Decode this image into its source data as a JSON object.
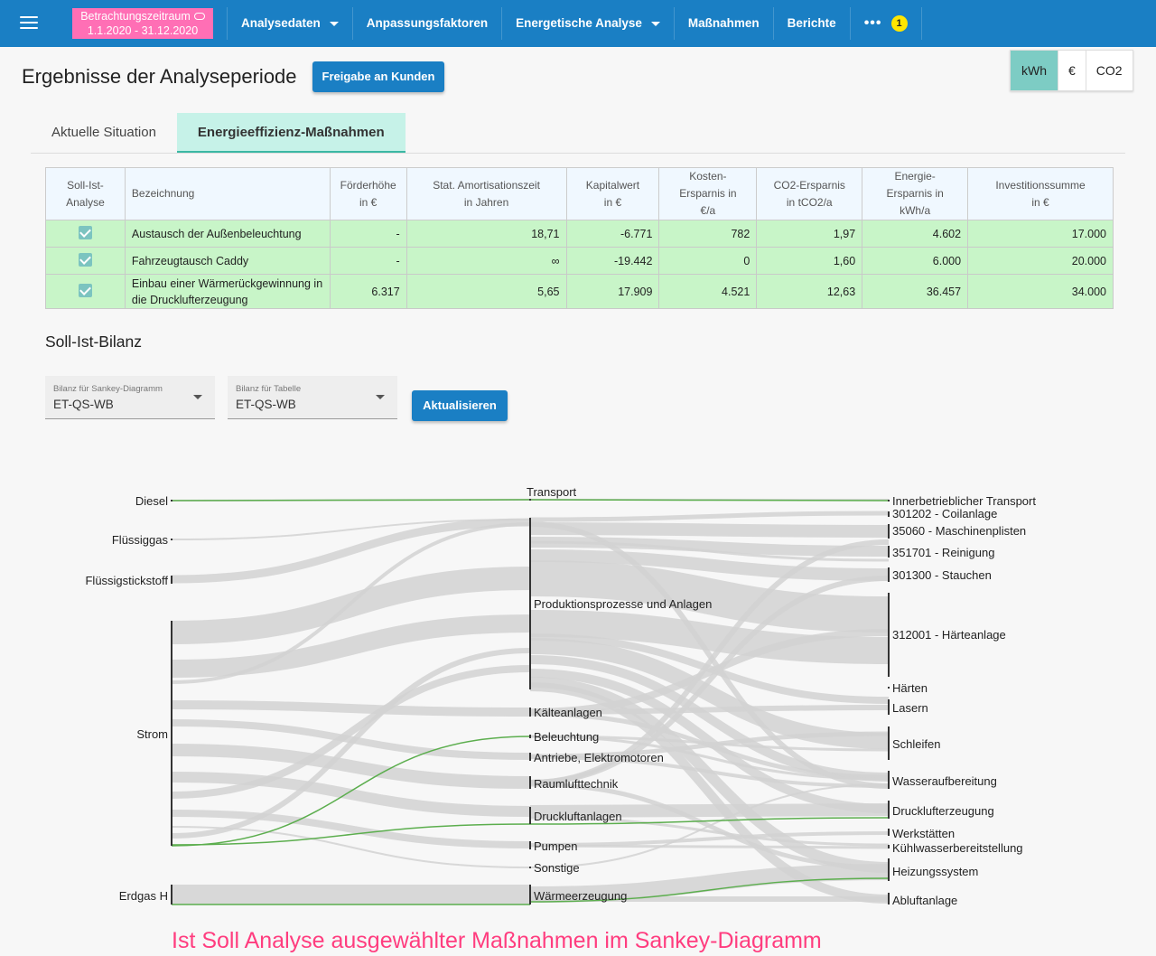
{
  "period": {
    "label": "Betrachtungszeitraum",
    "range": "1.1.2020 - 31.12.2020"
  },
  "nav": {
    "items": [
      {
        "label": "Analysedaten",
        "dropdown": true
      },
      {
        "label": "Anpassungsfaktoren",
        "dropdown": false
      },
      {
        "label": "Energetische Analyse",
        "dropdown": true
      },
      {
        "label": "Maßnahmen",
        "dropdown": false
      },
      {
        "label": "Berichte",
        "dropdown": false
      }
    ],
    "more_icon": "more-dots-icon",
    "badge": "1"
  },
  "page": {
    "title": "Ergebnisse der Analyseperiode",
    "share_button": "Freigabe an Kunden"
  },
  "units": {
    "options": [
      "kWh",
      "€",
      "CO2"
    ],
    "selected": "kWh"
  },
  "tabs": [
    {
      "label": "Aktuelle Situation",
      "active": false
    },
    {
      "label": "Energieeffizienz-Maßnahmen",
      "active": true
    }
  ],
  "table": {
    "headers": [
      [
        "Soll-Ist-",
        "Analyse"
      ],
      [
        "Bezeichnung"
      ],
      [
        "Förderhöhe",
        "in €"
      ],
      [
        "Stat. Amortisationszeit",
        "in Jahren"
      ],
      [
        "Kapitalwert",
        "in €"
      ],
      [
        "Kosten-",
        "Ersparnis in",
        "€/a"
      ],
      [
        "CO2-Ersparnis",
        "in tCO2/a"
      ],
      [
        "Energie-",
        "Ersparnis in",
        "kWh/a"
      ],
      [
        "Investitionssumme",
        "in €"
      ]
    ],
    "rows": [
      {
        "checked": true,
        "name": "Austausch der Außenbeleuchtung",
        "foerder": "-",
        "amort": "18,71",
        "kapital": "-6.771",
        "kosten": "782",
        "co2": "1,97",
        "energie": "4.602",
        "invest": "17.000"
      },
      {
        "checked": true,
        "name": "Fahrzeugtausch Caddy",
        "foerder": "-",
        "amort": "∞",
        "kapital": "-19.442",
        "kosten": "0",
        "co2": "1,60",
        "energie": "6.000",
        "invest": "20.000"
      },
      {
        "checked": true,
        "name": "Einbau einer Wärmerückgewinnung in die Drucklufterzeugung",
        "foerder": "6.317",
        "amort": "5,65",
        "kapital": "17.909",
        "kosten": "4.521",
        "co2": "12,63",
        "energie": "36.457",
        "invest": "34.000"
      }
    ]
  },
  "balance": {
    "title": "Soll-Ist-Bilanz",
    "sankey_select": {
      "label": "Bilanz für Sankey-Diagramm",
      "value": "ET-QS-WB"
    },
    "table_select": {
      "label": "Bilanz für Tabelle",
      "value": "ET-QS-WB"
    },
    "update_button": "Aktualisieren"
  },
  "sankey": {
    "sources": [
      "Diesel",
      "Flüssiggas",
      "Flüssigstickstoff",
      "Strom",
      "Erdgas H"
    ],
    "uses": [
      "Transport",
      "Produktionsprozesse und Anlagen",
      "Kälteanlagen",
      "Beleuchtung",
      "Antriebe, Elektromotoren",
      "Raumlufttechnik",
      "Druckluftanlagen",
      "Pumpen",
      "Sonstige",
      "Wärmeerzeugung"
    ],
    "consumers": [
      "Innerbetrieblicher Transport",
      "301202 - Coilanlage",
      "35060 - Maschinenplisten",
      "351701 - Reinigung",
      "301300 - Stauchen",
      "312001 - Härteanlage",
      "Härten",
      "Lasern",
      "Schleifen",
      "Wasseraufbereitung",
      "Drucklufterzeugung",
      "Werkstätten",
      "Kühlwasserbereitstellung",
      "Heizungssystem",
      "Abluftanlage"
    ],
    "colors": {
      "flow": "#d2d2d2",
      "highlight": "#5cae4e",
      "node": "#333333"
    }
  },
  "caption": "Ist Soll Analyse ausgewählter Maßnahmen im Sankey-Diagramm"
}
